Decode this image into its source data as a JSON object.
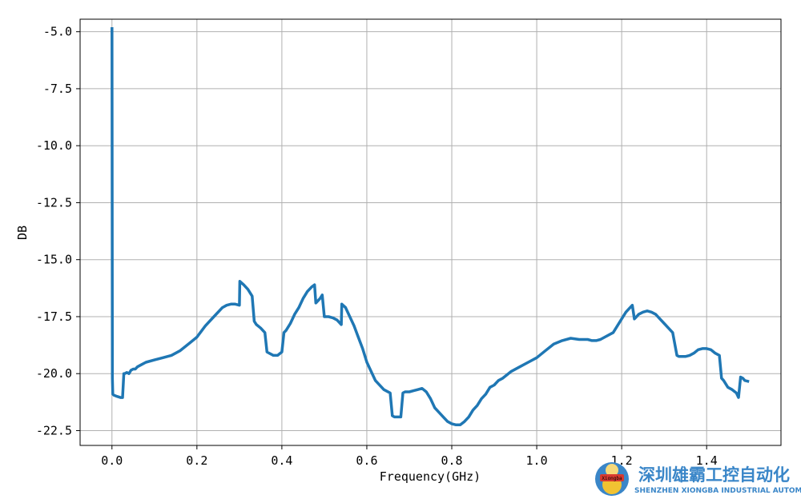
{
  "chart_data": {
    "type": "line",
    "title": "",
    "xlabel": "Frequency(GHz)",
    "ylabel": "DB",
    "xlim": [
      -0.075,
      1.575
    ],
    "ylim": [
      -23.15,
      -4.45
    ],
    "xticks": [
      0.0,
      0.2,
      0.4,
      0.6,
      0.8,
      1.0,
      1.2,
      1.4
    ],
    "xtick_labels": [
      "0.0",
      "0.2",
      "0.4",
      "0.6",
      "0.8",
      "1.0",
      "1.2",
      "1.4"
    ],
    "yticks": [
      -22.5,
      -20.0,
      -17.5,
      -15.0,
      -12.5,
      -10.0,
      -7.5,
      -5.0
    ],
    "ytick_labels": [
      "-22.5",
      "-20.0",
      "-17.5",
      "-15.0",
      "-12.5",
      "-10.0",
      "-7.5",
      "-5.0"
    ],
    "grid": true,
    "series": [
      {
        "color": "#1f77b4",
        "x": [
          0.0,
          0.001,
          0.002,
          0.005,
          0.012,
          0.02,
          0.025,
          0.028,
          0.03,
          0.035,
          0.04,
          0.045,
          0.05,
          0.055,
          0.06,
          0.07,
          0.08,
          0.1,
          0.12,
          0.14,
          0.16,
          0.18,
          0.2,
          0.22,
          0.24,
          0.26,
          0.27,
          0.28,
          0.29,
          0.3,
          0.301,
          0.31,
          0.32,
          0.33,
          0.335,
          0.34,
          0.35,
          0.36,
          0.365,
          0.37,
          0.38,
          0.39,
          0.4,
          0.405,
          0.41,
          0.42,
          0.43,
          0.44,
          0.45,
          0.46,
          0.47,
          0.477,
          0.48,
          0.485,
          0.49,
          0.495,
          0.5,
          0.505,
          0.51,
          0.52,
          0.53,
          0.54,
          0.541,
          0.55,
          0.56,
          0.57,
          0.58,
          0.59,
          0.6,
          0.62,
          0.64,
          0.655,
          0.66,
          0.665,
          0.67,
          0.68,
          0.685,
          0.69,
          0.7,
          0.71,
          0.72,
          0.73,
          0.74,
          0.75,
          0.76,
          0.77,
          0.78,
          0.79,
          0.8,
          0.81,
          0.82,
          0.83,
          0.84,
          0.85,
          0.86,
          0.87,
          0.88,
          0.89,
          0.9,
          0.91,
          0.92,
          0.94,
          0.96,
          0.98,
          1.0,
          1.02,
          1.04,
          1.06,
          1.08,
          1.1,
          1.12,
          1.13,
          1.14,
          1.15,
          1.16,
          1.18,
          1.2,
          1.21,
          1.22,
          1.225,
          1.23,
          1.235,
          1.24,
          1.25,
          1.26,
          1.27,
          1.28,
          1.29,
          1.3,
          1.31,
          1.32,
          1.33,
          1.335,
          1.34,
          1.35,
          1.36,
          1.37,
          1.38,
          1.39,
          1.4,
          1.41,
          1.42,
          1.43,
          1.435,
          1.44,
          1.45,
          1.46,
          1.47,
          1.475,
          1.48,
          1.485,
          1.49,
          1.5
        ],
        "y": [
          -4.8,
          -20.2,
          -20.9,
          -20.95,
          -21.0,
          -21.05,
          -21.05,
          -20.0,
          -20.0,
          -19.95,
          -20.0,
          -19.85,
          -19.8,
          -19.8,
          -19.7,
          -19.6,
          -19.5,
          -19.4,
          -19.3,
          -19.2,
          -19.0,
          -18.7,
          -18.4,
          -17.9,
          -17.5,
          -17.1,
          -17.0,
          -16.95,
          -16.95,
          -17.0,
          -15.95,
          -16.1,
          -16.3,
          -16.6,
          -17.7,
          -17.85,
          -18.0,
          -18.2,
          -19.05,
          -19.1,
          -19.2,
          -19.2,
          -19.05,
          -18.2,
          -18.1,
          -17.8,
          -17.4,
          -17.1,
          -16.7,
          -16.4,
          -16.2,
          -16.1,
          -16.9,
          -16.8,
          -16.7,
          -16.55,
          -17.5,
          -17.5,
          -17.5,
          -17.55,
          -17.65,
          -17.85,
          -16.95,
          -17.1,
          -17.5,
          -17.9,
          -18.4,
          -18.9,
          -19.5,
          -20.3,
          -20.7,
          -20.85,
          -21.85,
          -21.9,
          -21.9,
          -21.9,
          -20.85,
          -20.8,
          -20.8,
          -20.75,
          -20.7,
          -20.65,
          -20.8,
          -21.1,
          -21.5,
          -21.7,
          -21.9,
          -22.1,
          -22.2,
          -22.25,
          -22.25,
          -22.1,
          -21.9,
          -21.6,
          -21.4,
          -21.1,
          -20.9,
          -20.6,
          -20.5,
          -20.3,
          -20.2,
          -19.9,
          -19.7,
          -19.5,
          -19.3,
          -19.0,
          -18.7,
          -18.55,
          -18.45,
          -18.5,
          -18.5,
          -18.55,
          -18.55,
          -18.5,
          -18.4,
          -18.2,
          -17.6,
          -17.3,
          -17.1,
          -17.0,
          -17.6,
          -17.5,
          -17.4,
          -17.3,
          -17.25,
          -17.3,
          -17.4,
          -17.6,
          -17.8,
          -18.0,
          -18.2,
          -19.2,
          -19.25,
          -19.25,
          -19.25,
          -19.2,
          -19.1,
          -18.95,
          -18.9,
          -18.9,
          -18.95,
          -19.1,
          -19.2,
          -20.2,
          -20.3,
          -20.6,
          -20.7,
          -20.85,
          -21.05,
          -20.15,
          -20.2,
          -20.3,
          -20.35
        ]
      }
    ]
  },
  "watermark": {
    "title": "深圳雄霸工控自动化",
    "subtitle": "SHENZHEN XIONGBA INDUSTRIAL AUTOMATION",
    "badge": "Xiongba"
  }
}
